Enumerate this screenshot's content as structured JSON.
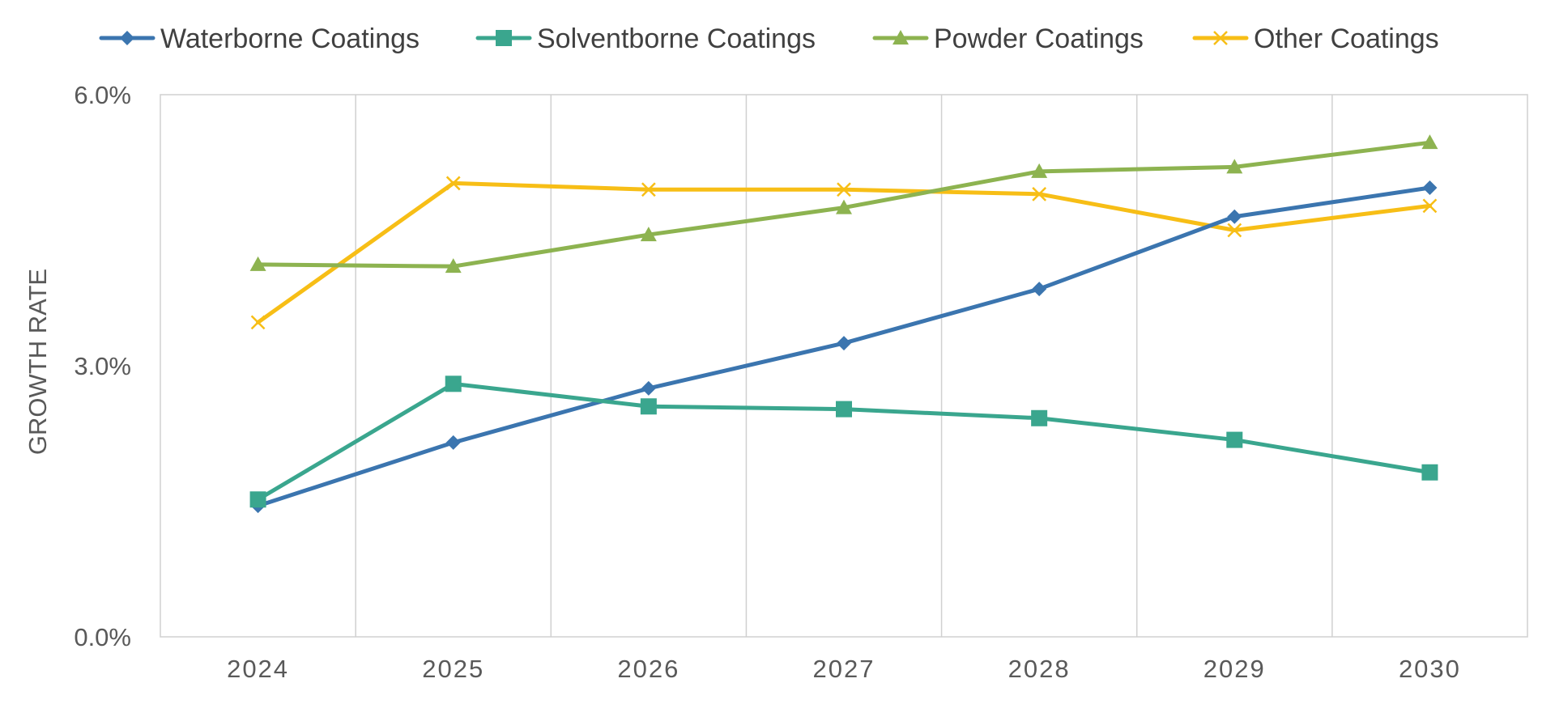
{
  "chart_data": {
    "type": "line",
    "title": "",
    "xlabel": "",
    "ylabel": "GROWTH RATE",
    "categories": [
      "2024",
      "2025",
      "2026",
      "2027",
      "2028",
      "2029",
      "2030"
    ],
    "ylim": [
      0,
      6
    ],
    "yticks": [
      0,
      3,
      6
    ],
    "ytick_labels": [
      "0.0%",
      "3.0%",
      "6.0%"
    ],
    "grid": {
      "vertical": true,
      "horizontal": false
    },
    "legend_position": "top",
    "series": [
      {
        "name": "Waterborne Coatings",
        "color": "#3B75AF",
        "marker": "diamond",
        "values": [
          1.45,
          2.15,
          2.75,
          3.25,
          3.85,
          4.65,
          4.97
        ]
      },
      {
        "name": "Solventborne Coatings",
        "color": "#3AA68E",
        "marker": "square",
        "values": [
          1.52,
          2.8,
          2.55,
          2.52,
          2.42,
          2.18,
          1.82
        ]
      },
      {
        "name": "Powder Coatings",
        "color": "#8DB350",
        "marker": "triangle",
        "values": [
          4.12,
          4.1,
          4.45,
          4.75,
          5.15,
          5.2,
          5.47
        ]
      },
      {
        "name": "Other Coatings",
        "color": "#F7BE16",
        "marker": "x",
        "values": [
          3.48,
          5.02,
          4.95,
          4.95,
          4.9,
          4.5,
          4.77
        ]
      }
    ]
  }
}
